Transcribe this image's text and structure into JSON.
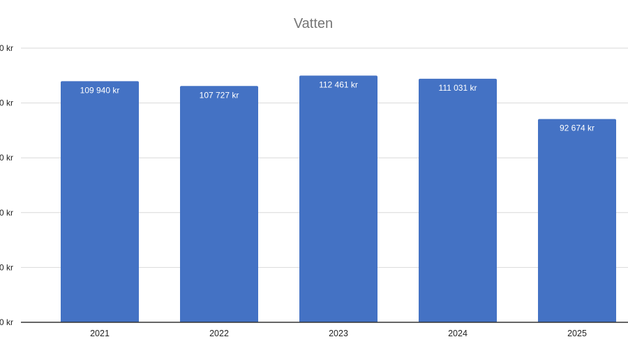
{
  "chart_data": {
    "type": "bar",
    "title": "Vatten",
    "categories": [
      "2021",
      "2022",
      "2023",
      "2024",
      "2025"
    ],
    "series": [
      {
        "values": [
          109940,
          107727,
          112461,
          111031,
          92674
        ],
        "color": "#4472c4"
      }
    ],
    "data_labels": [
      "109 940 kr",
      "107 727 kr",
      "112 461 kr",
      "111 031 kr",
      "92 674 kr"
    ],
    "y_tick_labels": [
      "0 kr",
      "0 kr",
      "0 kr",
      "0 kr",
      "0 kr",
      "0 kr"
    ],
    "ylim": [
      0,
      125000
    ],
    "grid": true,
    "legend": "none",
    "colors": {
      "bar": "#4472c4",
      "grid": "#d9d9d9",
      "axis": "#333333",
      "title": "#757575"
    }
  }
}
